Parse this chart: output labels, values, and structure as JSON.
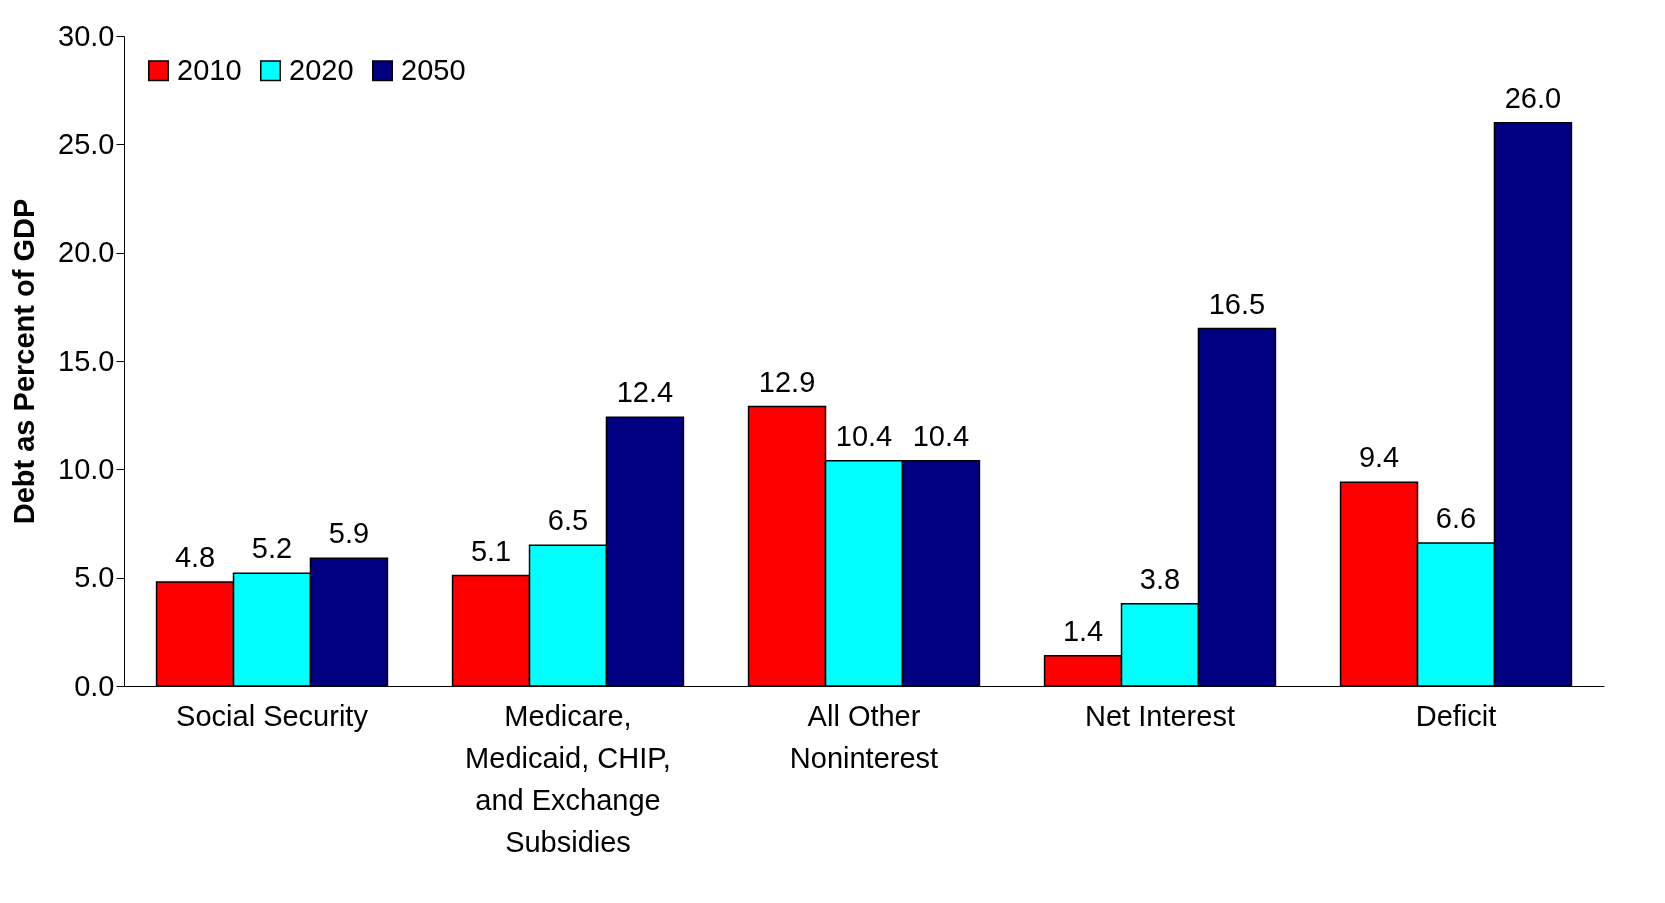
{
  "chart_data": {
    "type": "bar",
    "ylabel": "Debt as Percent of GDP",
    "categories": [
      "Social Security",
      "Medicare, Medicaid, CHIP, and Exchange Subsidies",
      "All Other Noninterest",
      "Net Interest",
      "Deficit"
    ],
    "series": [
      {
        "name": "2010",
        "color": "#ff0000",
        "values": [
          4.8,
          5.1,
          12.9,
          1.4,
          9.4
        ],
        "value_labels": [
          "4.8",
          "5.1",
          "12.9",
          "1.4",
          "9.4"
        ]
      },
      {
        "name": "2020",
        "color": "#00ffff",
        "values": [
          5.2,
          6.5,
          10.4,
          3.8,
          6.6
        ],
        "value_labels": [
          "5.2",
          "6.5",
          "10.4",
          "3.8",
          "6.6"
        ]
      },
      {
        "name": "2050",
        "color": "#000080",
        "values": [
          5.9,
          12.4,
          10.4,
          16.5,
          26.0
        ],
        "value_labels": [
          "5.9",
          "12.4",
          "10.4",
          "16.5",
          "26.0"
        ]
      }
    ],
    "ylim": [
      0,
      30
    ],
    "yticks": [
      {
        "value": 0,
        "label": "0.0"
      },
      {
        "value": 5,
        "label": "5.0"
      },
      {
        "value": 10,
        "label": "10.0"
      },
      {
        "value": 15,
        "label": "15.0"
      },
      {
        "value": 20,
        "label": "20.0"
      },
      {
        "value": 25,
        "label": "25.0"
      },
      {
        "value": 30,
        "label": "30.0"
      }
    ],
    "grid": false,
    "legend": "top left"
  }
}
